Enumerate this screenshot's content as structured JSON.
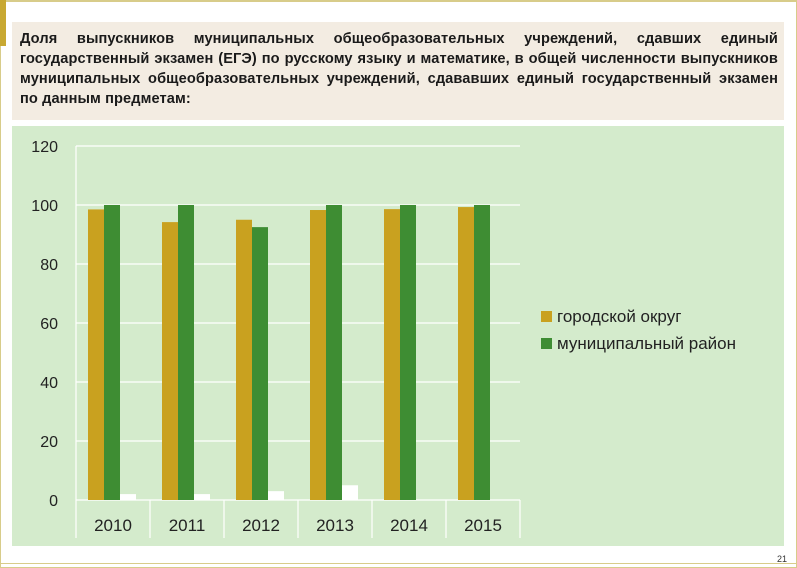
{
  "header": {
    "title": "Доля выпускников муниципальных общеобразовательных учреждений, сдавших единый государственный экзамен (ЕГЭ) по русскому языку и математике, в общей численности выпускников муниципальных общеобразовательных учреждений, сдававших единый государственный экзамен по данным предметам:"
  },
  "footer": {
    "page_number": "21"
  },
  "colors": {
    "series_1": "#c9a11f",
    "series_2": "#3e8d33",
    "background": "#d4ebcc"
  },
  "chart_data": {
    "type": "bar",
    "categories": [
      "2010",
      "2011",
      "2012",
      "2013",
      "2014",
      "2015"
    ],
    "series": [
      {
        "name": "городской округ",
        "values": [
          98.5,
          94.2,
          95.0,
          98.3,
          98.6,
          99.3
        ]
      },
      {
        "name": "муниципальный район",
        "values": [
          100,
          100,
          92.5,
          100,
          100,
          100
        ]
      },
      {
        "values": [
          2,
          2,
          3,
          5,
          0,
          0
        ]
      }
    ],
    "ylim": [
      0,
      120
    ],
    "yticks": [
      0,
      20,
      40,
      60,
      80,
      100,
      120
    ],
    "grid": true,
    "legend": "right",
    "title": "",
    "xlabel": "",
    "ylabel": ""
  }
}
